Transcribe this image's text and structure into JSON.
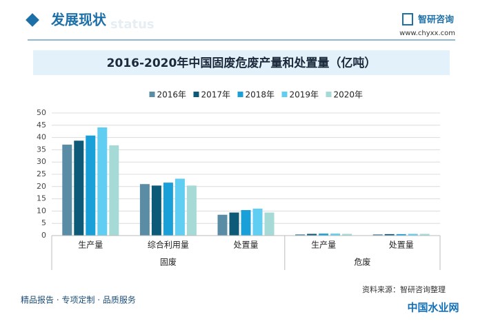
{
  "header": {
    "title": "发展现状",
    "subtitle": "status",
    "brand": "智研咨询",
    "url": "www.chyxx.com"
  },
  "chart_data": {
    "type": "bar",
    "title": "2016-2020年中国固废危废产量和处置量（亿吨）",
    "groups": [
      {
        "label": "固废",
        "categories": [
          "生产量",
          "综合利用量",
          "处置量"
        ]
      },
      {
        "label": "危废",
        "categories": [
          "生产量",
          "处置量"
        ]
      }
    ],
    "series": [
      {
        "name": "2016年",
        "color": "#5a8ca6",
        "values": [
          37.1,
          21.0,
          8.5,
          0.5,
          0.5
        ]
      },
      {
        "name": "2017年",
        "color": "#0d5a78",
        "values": [
          38.7,
          20.4,
          9.4,
          0.7,
          0.6
        ]
      },
      {
        "name": "2018年",
        "color": "#19a0d8",
        "values": [
          40.8,
          21.6,
          10.4,
          0.8,
          0.6
        ]
      },
      {
        "name": "2019年",
        "color": "#60cdf2",
        "values": [
          44.1,
          23.2,
          11.0,
          0.8,
          0.7
        ]
      },
      {
        "name": "2020年",
        "color": "#a6dad6",
        "values": [
          36.8,
          20.4,
          9.4,
          0.7,
          0.7
        ]
      }
    ],
    "ylim": [
      0,
      50
    ],
    "yticks": [
      0,
      5,
      10,
      15,
      20,
      25,
      30,
      35,
      40,
      45,
      50
    ],
    "grid": true,
    "legend": "top"
  },
  "footer": {
    "slogan": "精品报告 · 专项定制 · 品质服务",
    "source": "资料来源：智研咨询整理",
    "badge": "中国水业网"
  }
}
